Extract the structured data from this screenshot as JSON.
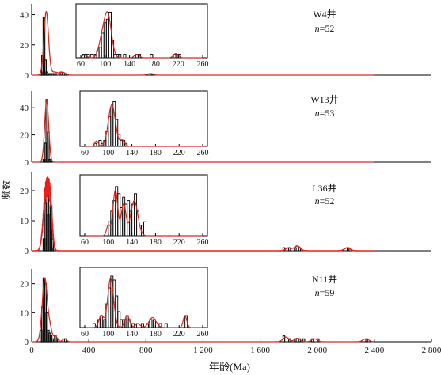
{
  "figure": {
    "ylabel": "频数",
    "xlabel": "年龄(Ma)",
    "main_xticks": [
      0,
      400,
      800,
      1200,
      1600,
      2000,
      2400,
      2800
    ],
    "main_xtick_labels": [
      "0",
      "400",
      "800",
      "1 200",
      "1 600",
      "2 000",
      "2 400",
      "2 800"
    ],
    "main_xlim": [
      0,
      2800
    ],
    "inset_xticks": [
      "60",
      "100",
      "140",
      "180",
      "220",
      "260"
    ],
    "inset_xlim": [
      60,
      260
    ],
    "colors": {
      "histogram": "#111111",
      "kde_curve": "#d42a1c",
      "kde_panel3": "#e8201a"
    }
  },
  "chart_data": [
    {
      "type": "bar",
      "panel_label": "W4井",
      "n_label": "n=52",
      "yticks": [
        "0",
        "20",
        "40"
      ],
      "ylim": [
        0,
        45
      ],
      "main_bins": [
        [
          60,
          2
        ],
        [
          70,
          13
        ],
        [
          80,
          38
        ],
        [
          90,
          10
        ],
        [
          100,
          2
        ],
        [
          110,
          1
        ],
        [
          120,
          1
        ],
        [
          140,
          1
        ],
        [
          160,
          1
        ],
        [
          200,
          2
        ],
        [
          230,
          1
        ],
        [
          830,
          1
        ]
      ],
      "kde_peaks": [
        [
          102,
          42,
          16
        ],
        [
          160,
          2,
          20
        ],
        [
          215,
          2,
          20
        ],
        [
          830,
          1,
          20
        ]
      ],
      "inset_bins": [
        [
          62,
          1
        ],
        [
          66,
          1
        ],
        [
          70,
          1
        ],
        [
          76,
          1
        ],
        [
          82,
          1
        ],
        [
          86,
          2
        ],
        [
          90,
          3
        ],
        [
          94,
          7
        ],
        [
          98,
          10
        ],
        [
          102,
          11
        ],
        [
          106,
          13
        ],
        [
          110,
          5
        ],
        [
          114,
          1
        ],
        [
          118,
          1
        ],
        [
          122,
          1
        ],
        [
          130,
          1
        ],
        [
          150,
          1
        ],
        [
          154,
          1
        ],
        [
          174,
          1
        ],
        [
          212,
          1
        ],
        [
          216,
          1
        ],
        [
          220,
          1
        ]
      ],
      "inset_ymax": 14,
      "inset_kde": [
        [
          104,
          12.5,
          6
        ],
        [
          94,
          4,
          5
        ],
        [
          152,
          1,
          4
        ],
        [
          216,
          1.2,
          4
        ],
        [
          66,
          0.8,
          4
        ]
      ]
    },
    {
      "type": "bar",
      "panel_label": "W13井",
      "n_label": "n=53",
      "yticks": [
        "0",
        "20",
        "40"
      ],
      "ylim": [
        0,
        50
      ],
      "main_bins": [
        [
          80,
          2
        ],
        [
          90,
          14
        ],
        [
          100,
          46
        ],
        [
          110,
          22
        ],
        [
          120,
          2
        ],
        [
          130,
          1
        ]
      ],
      "kde_peaks": [
        [
          105,
          45,
          14
        ]
      ],
      "inset_bins": [
        [
          76,
          1
        ],
        [
          84,
          2
        ],
        [
          88,
          1
        ],
        [
          92,
          2
        ],
        [
          96,
          5
        ],
        [
          100,
          10
        ],
        [
          104,
          13
        ],
        [
          108,
          15
        ],
        [
          112,
          9
        ],
        [
          116,
          4
        ],
        [
          120,
          2
        ],
        [
          124,
          2
        ],
        [
          128,
          1
        ]
      ],
      "inset_ymax": 17,
      "inset_kde": [
        [
          106,
          14,
          6
        ],
        [
          80,
          1.8,
          3
        ],
        [
          124,
          2,
          4
        ]
      ]
    },
    {
      "type": "bar",
      "panel_label": "L36井",
      "n_label": "n=52",
      "yticks": [
        "0",
        "10",
        "20"
      ],
      "ylim": [
        0,
        25
      ],
      "main_bins": [
        [
          80,
          4
        ],
        [
          90,
          16
        ],
        [
          100,
          20
        ],
        [
          110,
          12
        ],
        [
          120,
          19
        ],
        [
          130,
          15
        ],
        [
          140,
          4
        ],
        [
          150,
          1
        ],
        [
          1760,
          1
        ],
        [
          1800,
          1
        ],
        [
          1840,
          1
        ],
        [
          1870,
          1
        ],
        [
          2210,
          1
        ]
      ],
      "kde_peaks": [
        [
          100,
          22,
          18
        ],
        [
          130,
          16,
          14
        ],
        [
          1800,
          1,
          20
        ],
        [
          1860,
          1.6,
          20
        ],
        [
          2210,
          1,
          20
        ]
      ],
      "kde_style": "spiky",
      "inset_bins": [
        [
          100,
          4
        ],
        [
          104,
          7
        ],
        [
          108,
          10
        ],
        [
          112,
          14
        ],
        [
          116,
          12
        ],
        [
          120,
          8
        ],
        [
          124,
          11
        ],
        [
          128,
          9
        ],
        [
          132,
          10
        ],
        [
          136,
          7
        ],
        [
          140,
          9
        ],
        [
          144,
          12
        ],
        [
          148,
          7
        ],
        [
          152,
          3
        ],
        [
          156,
          3
        ],
        [
          160,
          4
        ]
      ],
      "inset_ymax": 16,
      "inset_kde": [
        [
          112,
          13,
          4
        ],
        [
          126,
          9,
          4
        ],
        [
          144,
          10,
          6
        ],
        [
          100,
          3,
          3
        ]
      ]
    },
    {
      "type": "bar",
      "panel_label": "N11井",
      "n_label": "n=59",
      "yticks": [
        "0",
        "10",
        "20"
      ],
      "ylim": [
        0,
        24
      ],
      "main_bins": [
        [
          60,
          4
        ],
        [
          70,
          12
        ],
        [
          80,
          22
        ],
        [
          90,
          20
        ],
        [
          100,
          10
        ],
        [
          110,
          4
        ],
        [
          120,
          3
        ],
        [
          130,
          2
        ],
        [
          140,
          1
        ],
        [
          160,
          2
        ],
        [
          180,
          1
        ],
        [
          230,
          1
        ],
        [
          1760,
          2
        ],
        [
          1800,
          1
        ],
        [
          1840,
          1
        ],
        [
          1870,
          1
        ],
        [
          1900,
          1
        ],
        [
          1960,
          1
        ],
        [
          2000,
          1
        ],
        [
          2340,
          1
        ]
      ],
      "kde_peaks": [
        [
          92,
          22,
          18
        ],
        [
          130,
          4,
          12
        ],
        [
          165,
          2,
          14
        ],
        [
          230,
          1,
          14
        ],
        [
          1780,
          1.6,
          20
        ],
        [
          1860,
          1.2,
          20
        ],
        [
          1980,
          1,
          20
        ],
        [
          2340,
          1,
          20
        ]
      ],
      "inset_bins": [
        [
          74,
          1
        ],
        [
          82,
          2
        ],
        [
          86,
          3
        ],
        [
          92,
          2
        ],
        [
          96,
          6
        ],
        [
          100,
          10
        ],
        [
          104,
          13
        ],
        [
          108,
          12
        ],
        [
          112,
          8
        ],
        [
          116,
          4
        ],
        [
          120,
          2
        ],
        [
          124,
          2
        ],
        [
          130,
          3
        ],
        [
          134,
          2
        ],
        [
          140,
          1
        ],
        [
          148,
          1
        ],
        [
          156,
          1
        ],
        [
          164,
          1
        ],
        [
          170,
          2
        ],
        [
          176,
          2
        ],
        [
          186,
          1
        ],
        [
          196,
          1
        ],
        [
          230,
          3
        ]
      ],
      "inset_ymax": 14,
      "inset_kde": [
        [
          104,
          12.5,
          5
        ],
        [
          88,
          3,
          4
        ],
        [
          132,
          3,
          4
        ],
        [
          175,
          2.5,
          6
        ],
        [
          230,
          3,
          3
        ],
        [
          150,
          1,
          4
        ]
      ]
    }
  ]
}
